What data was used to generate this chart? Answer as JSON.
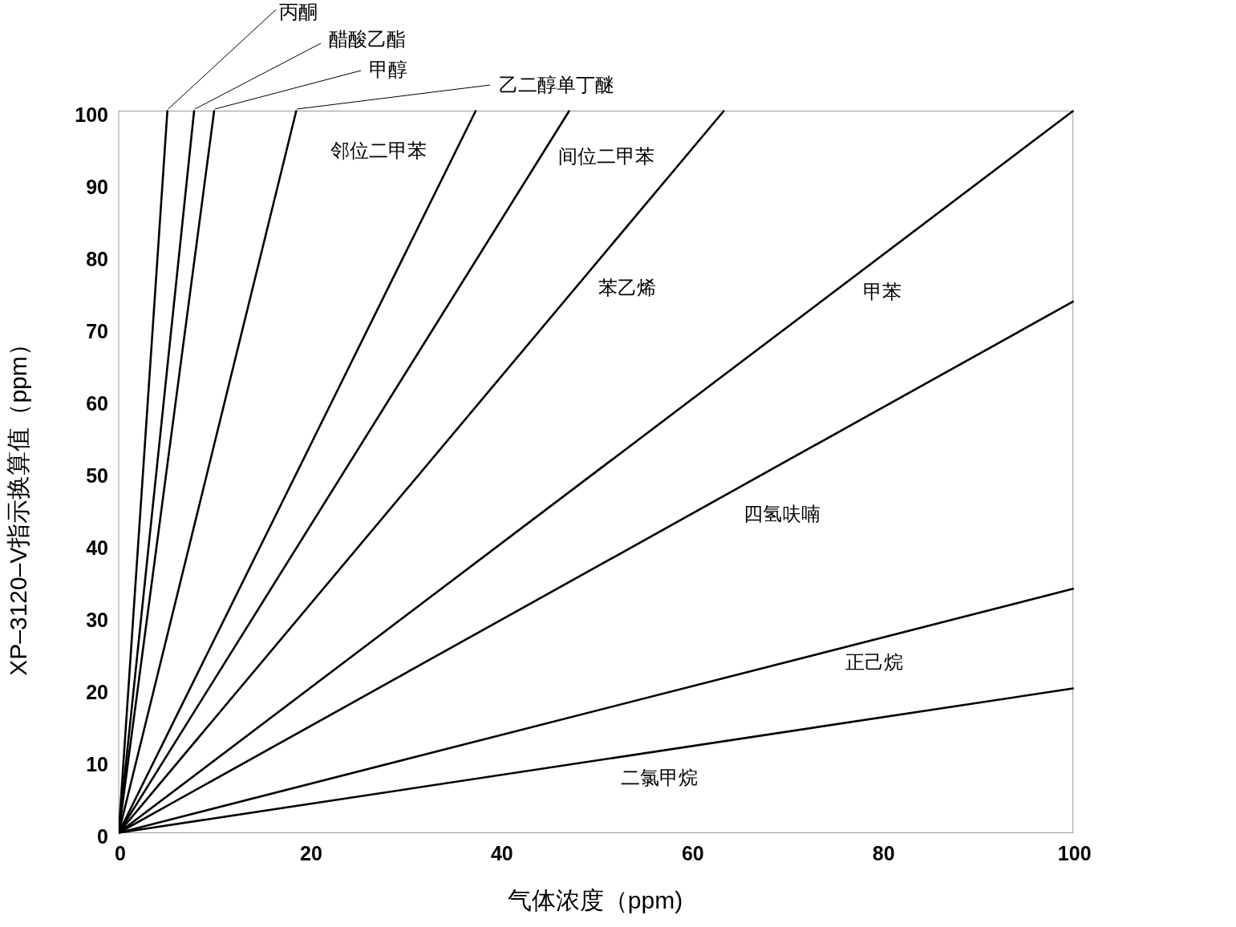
{
  "chart_data": {
    "type": "line",
    "xlabel": "气体浓度（ppm)",
    "ylabel": "XP–3120–V指示换算值（ppm）",
    "xlim": [
      0,
      100
    ],
    "ylim": [
      0,
      100
    ],
    "xticks": [
      0,
      20,
      40,
      60,
      80,
      100
    ],
    "yticks": [
      0,
      10,
      20,
      30,
      40,
      50,
      60,
      70,
      80,
      90,
      100
    ],
    "line_style": "solid",
    "series": [
      {
        "name": "丙酮",
        "color": "#000000",
        "x": [
          0,
          5.1
        ],
        "values": [
          0,
          100
        ]
      },
      {
        "name": "醋酸乙酯",
        "color": "#000000",
        "x": [
          0,
          7.9
        ],
        "values": [
          0,
          100
        ]
      },
      {
        "name": "甲醇",
        "color": "#000000",
        "x": [
          0,
          10
        ],
        "values": [
          0,
          100
        ]
      },
      {
        "name": "乙二醇单丁醚",
        "color": "#000000",
        "x": [
          0,
          18.6
        ],
        "values": [
          0,
          100
        ]
      },
      {
        "name": "邻位二甲苯",
        "color": "#000000",
        "x": [
          0,
          37.4
        ],
        "values": [
          0,
          100
        ]
      },
      {
        "name": "间位二甲苯",
        "color": "#000000",
        "x": [
          0,
          47.2
        ],
        "values": [
          0,
          100
        ]
      },
      {
        "name": "苯乙烯",
        "color": "#000000",
        "x": [
          0,
          63.4
        ],
        "values": [
          0,
          100
        ]
      },
      {
        "name": "甲苯",
        "color": "#000000",
        "x": [
          0,
          100
        ],
        "values": [
          0,
          100
        ]
      },
      {
        "name": "四氢呋喃",
        "color": "#000000",
        "x": [
          0,
          100
        ],
        "values": [
          0,
          73.6
        ]
      },
      {
        "name": "正己烷",
        "color": "#000000",
        "x": [
          0,
          100
        ],
        "values": [
          0,
          33.8
        ]
      },
      {
        "name": "二氯甲烷",
        "color": "#000000",
        "x": [
          0,
          100
        ],
        "values": [
          0,
          20
        ]
      }
    ]
  }
}
